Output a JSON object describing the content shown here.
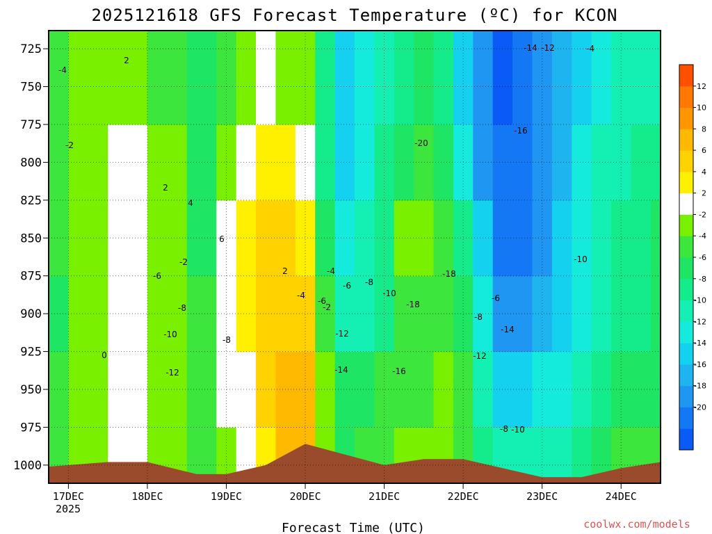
{
  "chart_data": {
    "type": "heatmap",
    "title": "2025121618 GFS Forecast Temperature (ºC) for KCON",
    "xlabel": "Forecast Time (UTC)",
    "ylabel": "",
    "x_ticks": [
      "17DEC",
      "18DEC",
      "19DEC",
      "20DEC",
      "21DEC",
      "22DEC",
      "23DEC",
      "24DEC"
    ],
    "x_tick_hours": [
      6,
      30,
      54,
      78,
      102,
      126,
      150,
      174
    ],
    "x_year_label": "2025",
    "xlim_hours": [
      0,
      186
    ],
    "y_ticks": [
      725,
      750,
      775,
      800,
      825,
      850,
      875,
      900,
      925,
      950,
      975,
      1000
    ],
    "ylim_hPa": [
      713,
      1012
    ],
    "grid": true,
    "colorbar": {
      "levels": [
        -22,
        -20,
        -18,
        -16,
        -14,
        -12,
        -10,
        -8,
        -6,
        -4,
        -2,
        2,
        4,
        6,
        8,
        10,
        12,
        14
      ],
      "colors": [
        "#0a5bf5",
        "#1478f5",
        "#1e96f2",
        "#1eb4f0",
        "#14d2ef",
        "#14ebdc",
        "#14f0b4",
        "#14ec8c",
        "#1ee664",
        "#3ce63c",
        "#78f000",
        "#ffffff",
        "#fff000",
        "#ffd200",
        "#ffb900",
        "#ff9600",
        "#ff7800",
        "#ff5000"
      ],
      "labels": [
        "-20",
        "-18",
        "-16",
        "-14",
        "-12",
        "-10",
        "-8",
        "-6",
        "-4",
        "-2",
        "2",
        "4",
        "6",
        "8",
        "10",
        "12"
      ]
    },
    "series": [
      {
        "name": "1000 hPa",
        "x": [
          0,
          12,
          24,
          36,
          48,
          54,
          60,
          66,
          72,
          78,
          84,
          90,
          96,
          102,
          108,
          114,
          120,
          126,
          132,
          138,
          144,
          150,
          156,
          162,
          168,
          174,
          180,
          186
        ],
        "values": [
          -3,
          -1,
          3,
          1,
          -3,
          1,
          3,
          5,
          8,
          9,
          0,
          -5,
          -4,
          -3,
          -2,
          -1,
          -1,
          -3,
          -7,
          -10,
          -10,
          -10,
          -9,
          -8,
          -6,
          -4,
          -4,
          -4
        ]
      },
      {
        "name": "950 hPa",
        "x": [
          0,
          12,
          24,
          36,
          48,
          54,
          60,
          66,
          72,
          78,
          84,
          90,
          96,
          102,
          108,
          114,
          120,
          126,
          132,
          138,
          144,
          150,
          156,
          162,
          168,
          174,
          180,
          186
        ],
        "values": [
          -4,
          -2,
          2,
          0,
          -4,
          2,
          3,
          6,
          9,
          8,
          -1,
          -6,
          -5,
          -4,
          -4,
          -3,
          -2,
          -4,
          -9,
          -13,
          -13,
          -12,
          -11,
          -10,
          -8,
          -6,
          -5,
          -5
        ]
      },
      {
        "name": "900 hPa",
        "x": [
          0,
          12,
          24,
          36,
          48,
          54,
          60,
          66,
          72,
          78,
          84,
          90,
          96,
          102,
          108,
          114,
          120,
          126,
          132,
          138,
          144,
          150,
          156,
          162,
          168,
          174,
          180,
          186
        ],
        "values": [
          -5,
          -2,
          3,
          0,
          -4,
          2,
          4,
          6,
          7,
          6,
          -4,
          -10,
          -9,
          -7,
          -4,
          -3,
          -3,
          -6,
          -12,
          -17,
          -18,
          -16,
          -14,
          -12,
          -10,
          -8,
          -7,
          -6
        ]
      },
      {
        "name": "850 hPa",
        "x": [
          0,
          12,
          24,
          36,
          48,
          54,
          60,
          66,
          72,
          78,
          84,
          90,
          96,
          102,
          108,
          114,
          120,
          126,
          132,
          138,
          144,
          150,
          156,
          162,
          168,
          174,
          180,
          186
        ],
        "values": [
          -4,
          -1,
          3,
          0,
          -5,
          2,
          4,
          6,
          6,
          5,
          -5,
          -11,
          -9,
          -7,
          0,
          -1,
          -4,
          -8,
          -14,
          -19,
          -20,
          -17,
          -14,
          -11,
          -9,
          -7,
          -7,
          -6
        ]
      },
      {
        "name": "800 hPa",
        "x": [
          0,
          12,
          24,
          36,
          48,
          54,
          60,
          66,
          72,
          78,
          84,
          90,
          96,
          102,
          108,
          114,
          120,
          126,
          132,
          138,
          144,
          150,
          156,
          162,
          168,
          174,
          180,
          186
        ],
        "values": [
          -3,
          -2,
          3,
          -1,
          -5,
          -1,
          3,
          5,
          4,
          2,
          -7,
          -13,
          -11,
          -8,
          -5,
          -4,
          -6,
          -12,
          -17,
          -20,
          -20,
          -18,
          -15,
          -12,
          -10,
          -9,
          -8,
          -8
        ]
      },
      {
        "name": "750 hPa",
        "x": [
          0,
          12,
          24,
          36,
          48,
          54,
          60,
          66,
          72,
          78,
          84,
          90,
          96,
          102,
          108,
          114,
          120,
          126,
          132,
          138,
          144,
          150,
          156,
          162,
          168,
          174,
          180,
          186
        ],
        "values": [
          -3,
          -2,
          -1,
          -3,
          -5,
          -3,
          1,
          2,
          1,
          0,
          -8,
          -13,
          -11,
          -9,
          -8,
          -6,
          -8,
          -13,
          -18,
          -21,
          -20,
          -18,
          -15,
          -13,
          -11,
          -10,
          -9,
          -9
        ]
      }
    ],
    "contour_labels": [
      "-4",
      "-2",
      "0",
      "2",
      "-2",
      "2",
      "4",
      "6",
      "2",
      "-6",
      "-8",
      "-10",
      "-12",
      "-8",
      "-4",
      "-6",
      "-2",
      "-4",
      "-6",
      "-8",
      "-10",
      "-12",
      "-14",
      "-16",
      "-18",
      "-20",
      "-18",
      "-12",
      "-8",
      "-10",
      "-8",
      "-6",
      "-14",
      "-16",
      "-14",
      "-12",
      "-10",
      "-4"
    ],
    "credit": "coolwx.com/models"
  }
}
